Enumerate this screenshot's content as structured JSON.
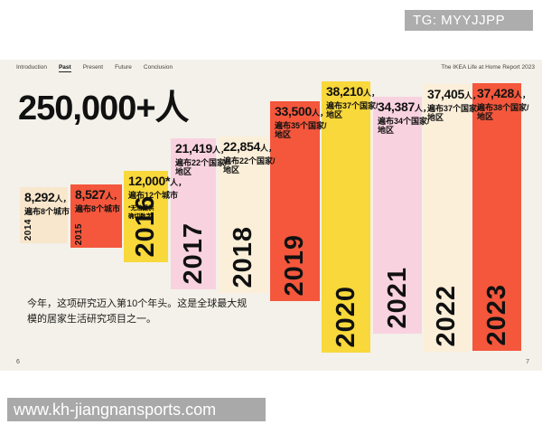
{
  "watermarks": {
    "tg": "TG: MYYJJPP",
    "url": "www.kh-jiangnansports.com"
  },
  "slide": {
    "nav_items": [
      {
        "label": "Introduction",
        "active": false
      },
      {
        "label": "Past",
        "active": true
      },
      {
        "label": "Present",
        "active": false
      },
      {
        "label": "Future",
        "active": false
      },
      {
        "label": "Conclusion",
        "active": false
      }
    ],
    "report_title": "The IKEA Life at Home Report 2023",
    "headline": "250,000+人",
    "paragraph": "今年，这项研究迈入第10个年头。这是全球最大规模的居家生活研究项目之一。",
    "page_left": "6",
    "page_right": "7"
  },
  "chart_data": {
    "type": "bar",
    "title": "250,000+人",
    "categories": [
      "2014",
      "2015",
      "2016",
      "2017",
      "2018",
      "2019",
      "2020",
      "2021",
      "2022",
      "2023"
    ],
    "values": [
      8292,
      8527,
      12000,
      21419,
      22854,
      33500,
      38210,
      34387,
      37405,
      37428
    ],
    "legend_position": "none",
    "grid": false,
    "palette": {
      "beige": "#f8e7cd",
      "red": "#f4573c",
      "yellow": "#f8d83a",
      "pink": "#f9d2e0",
      "cream": "#fcefd9"
    },
    "bars": [
      {
        "year": "2014",
        "value_label": "8,292",
        "suffix": "人，",
        "desc": "遍布8个城市",
        "color": "beige"
      },
      {
        "year": "2015",
        "value_label": "8,527",
        "suffix": "人，",
        "desc": "遍布8个城市",
        "color": "red"
      },
      {
        "year": "2016",
        "value_label": "12,000*",
        "suffix": "人，",
        "desc": "遍布12个城市",
        "footnote": "*无法提供\n确切数字",
        "color": "yellow"
      },
      {
        "year": "2017",
        "value_label": "21,419",
        "suffix": "人，",
        "desc": "遍布22个国家/地区",
        "color": "pink"
      },
      {
        "year": "2018",
        "value_label": "22,854",
        "suffix": "人，",
        "desc": "遍布22个国家/地区",
        "color": "cream"
      },
      {
        "year": "2019",
        "value_label": "33,500",
        "suffix": "人，",
        "desc": "遍布35个国家/地区",
        "color": "red"
      },
      {
        "year": "2020",
        "value_label": "38,210",
        "suffix": "人，",
        "desc": "遍布37个国家/地区",
        "color": "yellow"
      },
      {
        "year": "2021",
        "value_label": "34,387",
        "suffix": "人，",
        "desc": "遍布34个国家/地区",
        "color": "pink"
      },
      {
        "year": "2022",
        "value_label": "37,405",
        "suffix": "人，",
        "desc": "遍布37个国家/地区",
        "color": "cream"
      },
      {
        "year": "2023",
        "value_label": "37,428",
        "suffix": "人，",
        "desc": "遍布38个国家/地区",
        "color": "red"
      }
    ]
  }
}
